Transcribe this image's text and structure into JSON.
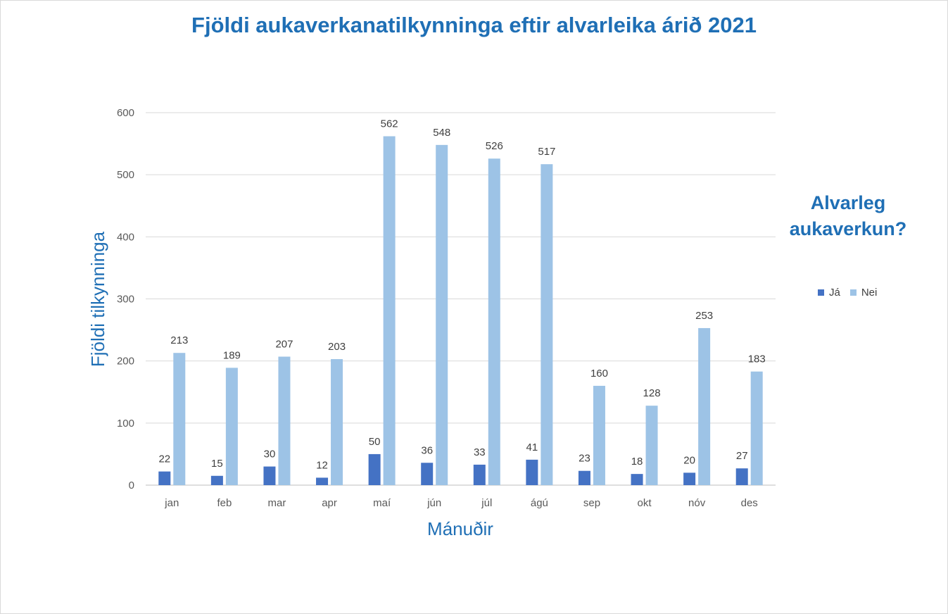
{
  "chart_data": {
    "type": "bar",
    "title": "Fjöldi aukaverkanatilkynninga eftir alvarleika árið 2021",
    "xlabel": "Mánuðir",
    "ylabel": "Fjöldi tilkynninga",
    "legend_title": "Alvarleg aukaverkun?",
    "legend_position": "right",
    "grid": true,
    "ylim": [
      0,
      600
    ],
    "yticks": [
      0,
      100,
      200,
      300,
      400,
      500,
      600
    ],
    "categories": [
      "jan",
      "feb",
      "mar",
      "apr",
      "maí",
      "jún",
      "júl",
      "ágú",
      "sep",
      "okt",
      "nóv",
      "des"
    ],
    "series": [
      {
        "name": "Já",
        "color": "#4472c4",
        "values": [
          22,
          15,
          30,
          12,
          50,
          36,
          33,
          41,
          23,
          18,
          20,
          27
        ]
      },
      {
        "name": "Nei",
        "color": "#9dc3e6",
        "values": [
          213,
          189,
          207,
          203,
          562,
          548,
          526,
          517,
          160,
          128,
          253,
          183
        ]
      }
    ]
  }
}
